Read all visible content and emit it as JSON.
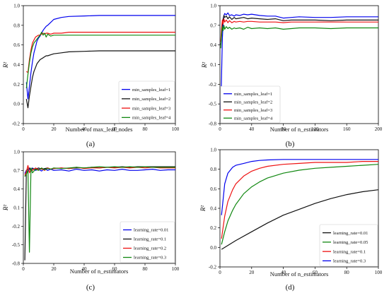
{
  "chart_data": [
    {
      "panel": "a",
      "label_text": "(a)",
      "type": "line",
      "xlabel": "Number of max_leaf_nodes",
      "ylabel": "R²",
      "xlim": [
        0,
        100
      ],
      "ylim": [
        -0.2,
        1.0
      ],
      "xticks": [
        0,
        20,
        40,
        60,
        80,
        100
      ],
      "yticks": [
        -0.2,
        0.0,
        0.2,
        0.4,
        0.6,
        0.8,
        1.0
      ],
      "ytick_labels": [
        "-0.2",
        "0.0",
        "0.2",
        "0.4",
        "0.6",
        "0.8",
        "1.0"
      ],
      "legend_position": "lower-right",
      "series": [
        {
          "name": "min_samples_leaf=1",
          "color": "#0000ee",
          "x": [
            2,
            3,
            4,
            5,
            6,
            7,
            8,
            9,
            10,
            11,
            12,
            13,
            14,
            15,
            16,
            18,
            20,
            25,
            30,
            40,
            50,
            60,
            70,
            80,
            90,
            100
          ],
          "y": [
            0.22,
            0.05,
            0.18,
            0.32,
            0.43,
            0.52,
            0.58,
            0.64,
            0.67,
            0.69,
            0.72,
            0.75,
            0.77,
            0.79,
            0.8,
            0.83,
            0.86,
            0.88,
            0.89,
            0.895,
            0.9,
            0.9,
            0.9,
            0.9,
            0.9,
            0.9
          ]
        },
        {
          "name": "min_samples_leaf=2",
          "color": "#111111",
          "x": [
            2,
            3,
            4,
            5,
            6,
            7,
            8,
            9,
            10,
            11,
            12,
            13,
            14,
            15,
            16,
            18,
            20,
            25,
            30,
            40,
            50,
            60,
            70,
            80,
            90,
            100
          ],
          "y": [
            0.05,
            -0.04,
            0.08,
            0.18,
            0.27,
            0.33,
            0.37,
            0.41,
            0.43,
            0.45,
            0.46,
            0.47,
            0.48,
            0.49,
            0.49,
            0.5,
            0.51,
            0.52,
            0.53,
            0.535,
            0.54,
            0.54,
            0.54,
            0.54,
            0.54,
            0.54
          ]
        },
        {
          "name": "min_samples_leaf=3",
          "color": "#ee1111",
          "x": [
            2,
            3,
            4,
            5,
            6,
            7,
            8,
            9,
            10,
            11,
            12,
            13,
            14,
            15,
            16,
            18,
            20,
            25,
            30,
            40,
            50,
            60,
            70,
            80,
            90,
            100
          ],
          "y": [
            0.33,
            0.32,
            0.45,
            0.55,
            0.62,
            0.65,
            0.68,
            0.69,
            0.7,
            0.7,
            0.71,
            0.72,
            0.71,
            0.72,
            0.72,
            0.71,
            0.72,
            0.72,
            0.73,
            0.73,
            0.73,
            0.73,
            0.73,
            0.73,
            0.73,
            0.73
          ]
        },
        {
          "name": "min_samples_leaf=4",
          "color": "#118811",
          "x": [
            2,
            3,
            4,
            5,
            6,
            7,
            8,
            9,
            10,
            11,
            12,
            13,
            14,
            15,
            16,
            18,
            20,
            25,
            30,
            40,
            50,
            60,
            70,
            80,
            90,
            100
          ],
          "y": [
            0.16,
            0.3,
            0.42,
            0.52,
            0.58,
            0.62,
            0.64,
            0.66,
            0.68,
            0.7,
            0.73,
            0.7,
            0.72,
            0.68,
            0.71,
            0.69,
            0.7,
            0.7,
            0.7,
            0.7,
            0.7,
            0.7,
            0.7,
            0.7,
            0.7,
            0.7
          ]
        }
      ]
    },
    {
      "panel": "b",
      "label_text": "(b)",
      "type": "line",
      "xlabel": "Number of n_estimators",
      "ylabel": "R²",
      "xlim": [
        0,
        200
      ],
      "ylim": [
        -0.8,
        1.0
      ],
      "xticks": [
        0,
        40,
        80,
        120,
        160,
        200
      ],
      "yticks": [
        -0.8,
        -0.5,
        -0.2,
        0.1,
        0.4,
        0.7,
        1.0
      ],
      "ytick_labels": [
        "-0.8",
        "-0.5",
        "-0.2",
        "0.1",
        "0.4",
        "0.7",
        "1.0"
      ],
      "legend_position": "lower-left",
      "series": [
        {
          "name": "min_samples_leaf=1",
          "color": "#0000ee",
          "x": [
            1,
            2,
            3,
            4,
            5,
            6,
            8,
            10,
            12,
            15,
            18,
            20,
            25,
            30,
            35,
            40,
            50,
            60,
            70,
            80,
            90,
            100,
            120,
            140,
            160,
            180,
            200
          ],
          "y": [
            -0.6,
            -0.1,
            0.5,
            0.75,
            0.85,
            0.88,
            0.86,
            0.89,
            0.85,
            0.86,
            0.84,
            0.86,
            0.85,
            0.87,
            0.86,
            0.87,
            0.85,
            0.84,
            0.84,
            0.81,
            0.82,
            0.83,
            0.82,
            0.82,
            0.83,
            0.83,
            0.83
          ]
        },
        {
          "name": "min_samples_leaf=2",
          "color": "#111111",
          "x": [
            1,
            2,
            3,
            4,
            5,
            6,
            8,
            10,
            12,
            15,
            18,
            20,
            25,
            30,
            35,
            40,
            50,
            60,
            70,
            80,
            90,
            100,
            120,
            140,
            160,
            180,
            200
          ],
          "y": [
            0.4,
            0.55,
            0.7,
            0.8,
            0.85,
            0.82,
            0.84,
            0.8,
            0.83,
            0.79,
            0.82,
            0.8,
            0.81,
            0.82,
            0.8,
            0.81,
            0.8,
            0.79,
            0.8,
            0.77,
            0.78,
            0.78,
            0.78,
            0.77,
            0.78,
            0.78,
            0.78
          ]
        },
        {
          "name": "min_samples_leaf=3",
          "color": "#ee1111",
          "x": [
            1,
            2,
            3,
            4,
            5,
            6,
            8,
            10,
            12,
            15,
            18,
            20,
            25,
            30,
            35,
            40,
            50,
            60,
            70,
            80,
            90,
            100,
            120,
            140,
            160,
            180,
            200
          ],
          "y": [
            0.45,
            0.65,
            0.78,
            0.72,
            0.8,
            0.75,
            0.78,
            0.74,
            0.77,
            0.74,
            0.76,
            0.75,
            0.76,
            0.75,
            0.76,
            0.76,
            0.75,
            0.75,
            0.75,
            0.74,
            0.75,
            0.75,
            0.75,
            0.75,
            0.75,
            0.75,
            0.75
          ]
        },
        {
          "name": "min_samples_leaf=4",
          "color": "#118811",
          "x": [
            1,
            2,
            3,
            4,
            5,
            6,
            8,
            10,
            12,
            15,
            18,
            20,
            25,
            30,
            35,
            40,
            50,
            60,
            70,
            80,
            90,
            100,
            120,
            140,
            160,
            180,
            200
          ],
          "y": [
            0.35,
            0.55,
            0.68,
            0.62,
            0.7,
            0.64,
            0.68,
            0.65,
            0.67,
            0.64,
            0.66,
            0.65,
            0.66,
            0.64,
            0.67,
            0.65,
            0.66,
            0.65,
            0.66,
            0.64,
            0.65,
            0.66,
            0.66,
            0.65,
            0.66,
            0.66,
            0.66
          ]
        }
      ]
    },
    {
      "panel": "c",
      "label_text": "(c)",
      "type": "line",
      "xlabel": "Number of n_estimators",
      "ylabel": "R²",
      "xlim": [
        0,
        100
      ],
      "ylim": [
        -0.8,
        1.0
      ],
      "xticks": [
        0,
        20,
        40,
        60,
        80,
        100
      ],
      "yticks": [
        -0.8,
        -0.5,
        -0.2,
        0.1,
        0.4,
        0.7,
        1.0
      ],
      "ytick_labels": [
        "-0.8",
        "-0.5",
        "-0.2",
        "0.1",
        "0.4",
        "0.7",
        "1.0"
      ],
      "legend_position": "lower-right",
      "series": [
        {
          "name": "learning_rate=0.01",
          "color": "#0000ee",
          "x": [
            1,
            2,
            3,
            4,
            5,
            6,
            8,
            10,
            12,
            14,
            16,
            18,
            20,
            25,
            30,
            35,
            40,
            45,
            50,
            55,
            60,
            65,
            70,
            75,
            80,
            85,
            90,
            95,
            100
          ],
          "y": [
            0.65,
            0.7,
            0.68,
            0.72,
            0.7,
            0.74,
            0.7,
            0.72,
            0.69,
            0.73,
            0.7,
            0.72,
            0.7,
            0.71,
            0.69,
            0.72,
            0.7,
            0.71,
            0.69,
            0.71,
            0.7,
            0.72,
            0.7,
            0.7,
            0.71,
            0.72,
            0.7,
            0.71,
            0.71
          ]
        },
        {
          "name": "learning_rate=0.1",
          "color": "#111111",
          "x": [
            1,
            2,
            3,
            4,
            5,
            6,
            8,
            10,
            12,
            14,
            16,
            18,
            20,
            25,
            30,
            35,
            40,
            45,
            50,
            55,
            60,
            65,
            70,
            75,
            80,
            85,
            90,
            95,
            100
          ],
          "y": [
            -0.75,
            0.7,
            0.72,
            0.74,
            0.71,
            0.73,
            0.72,
            0.74,
            0.72,
            0.73,
            0.74,
            0.72,
            0.73,
            0.74,
            0.73,
            0.74,
            0.74,
            0.75,
            0.74,
            0.75,
            0.75,
            0.76,
            0.75,
            0.76,
            0.76,
            0.76,
            0.76,
            0.76,
            0.76
          ]
        },
        {
          "name": "learning_rate=0.2",
          "color": "#ee1111",
          "x": [
            1,
            2,
            3,
            4,
            5,
            6,
            8,
            10,
            12,
            14,
            16,
            18,
            20,
            25,
            30,
            35,
            40,
            45,
            50,
            55,
            60,
            65,
            70,
            75,
            80,
            85,
            90,
            95,
            100
          ],
          "y": [
            0.62,
            0.68,
            0.78,
            0.66,
            0.72,
            0.7,
            0.74,
            0.71,
            0.73,
            0.7,
            0.74,
            0.72,
            0.73,
            0.74,
            0.73,
            0.75,
            0.73,
            0.74,
            0.74,
            0.75,
            0.74,
            0.75,
            0.74,
            0.75,
            0.74,
            0.75,
            0.74,
            0.74,
            0.74
          ]
        },
        {
          "name": "learning_rate=0.3",
          "color": "#118811",
          "x": [
            1,
            2,
            3,
            4,
            5,
            6,
            8,
            10,
            12,
            14,
            16,
            18,
            20,
            25,
            30,
            35,
            40,
            45,
            50,
            55,
            60,
            65,
            70,
            75,
            80,
            85,
            90,
            95,
            100
          ],
          "y": [
            0.6,
            0.64,
            0.7,
            -0.62,
            0.74,
            0.66,
            0.72,
            0.7,
            0.74,
            0.71,
            0.73,
            0.72,
            0.74,
            0.73,
            0.74,
            0.75,
            0.74,
            0.75,
            0.76,
            0.75,
            0.76,
            0.75,
            0.76,
            0.75,
            0.76,
            0.75,
            0.75,
            0.75,
            0.75
          ]
        }
      ]
    },
    {
      "panel": "d",
      "label_text": "(d)",
      "type": "line",
      "xlabel": "Number of n_estimators",
      "ylabel": "R²",
      "xlim": [
        0,
        100
      ],
      "ylim": [
        -0.2,
        1.0
      ],
      "xticks": [
        0,
        20,
        40,
        60,
        80,
        100
      ],
      "yticks": [
        -0.2,
        0.0,
        0.2,
        0.4,
        0.6,
        0.8,
        1.0
      ],
      "ytick_labels": [
        "-0.2",
        "0.0",
        "0.2",
        "0.4",
        "0.6",
        "0.8",
        "1.0"
      ],
      "legend_position": "lower-right",
      "series": [
        {
          "name": "learning_rate=0.01",
          "color": "#111111",
          "x": [
            1,
            10,
            20,
            30,
            40,
            50,
            60,
            70,
            80,
            90,
            100
          ],
          "y": [
            -0.02,
            0.07,
            0.16,
            0.25,
            0.33,
            0.39,
            0.45,
            0.5,
            0.54,
            0.57,
            0.59
          ]
        },
        {
          "name": "learning_rate=0.05",
          "color": "#118811",
          "x": [
            1,
            3,
            5,
            8,
            10,
            15,
            20,
            25,
            30,
            40,
            50,
            60,
            70,
            80,
            90,
            100
          ],
          "y": [
            0.03,
            0.16,
            0.27,
            0.38,
            0.44,
            0.55,
            0.62,
            0.67,
            0.71,
            0.76,
            0.79,
            0.81,
            0.82,
            0.83,
            0.84,
            0.85
          ]
        },
        {
          "name": "learning_rate=0.1",
          "color": "#ee1111",
          "x": [
            1,
            3,
            5,
            8,
            10,
            15,
            20,
            25,
            30,
            40,
            50,
            60,
            70,
            80,
            90,
            100
          ],
          "y": [
            0.09,
            0.32,
            0.47,
            0.59,
            0.65,
            0.73,
            0.78,
            0.81,
            0.83,
            0.85,
            0.86,
            0.87,
            0.87,
            0.87,
            0.88,
            0.88
          ]
        },
        {
          "name": "learning_rate=0.3",
          "color": "#0000ee",
          "x": [
            1,
            3,
            5,
            8,
            10,
            15,
            20,
            25,
            30,
            40,
            50,
            60,
            70,
            80,
            90,
            100
          ],
          "y": [
            0.33,
            0.65,
            0.76,
            0.82,
            0.84,
            0.86,
            0.88,
            0.89,
            0.895,
            0.9,
            0.9,
            0.9,
            0.9,
            0.9,
            0.9,
            0.9
          ]
        }
      ]
    }
  ]
}
